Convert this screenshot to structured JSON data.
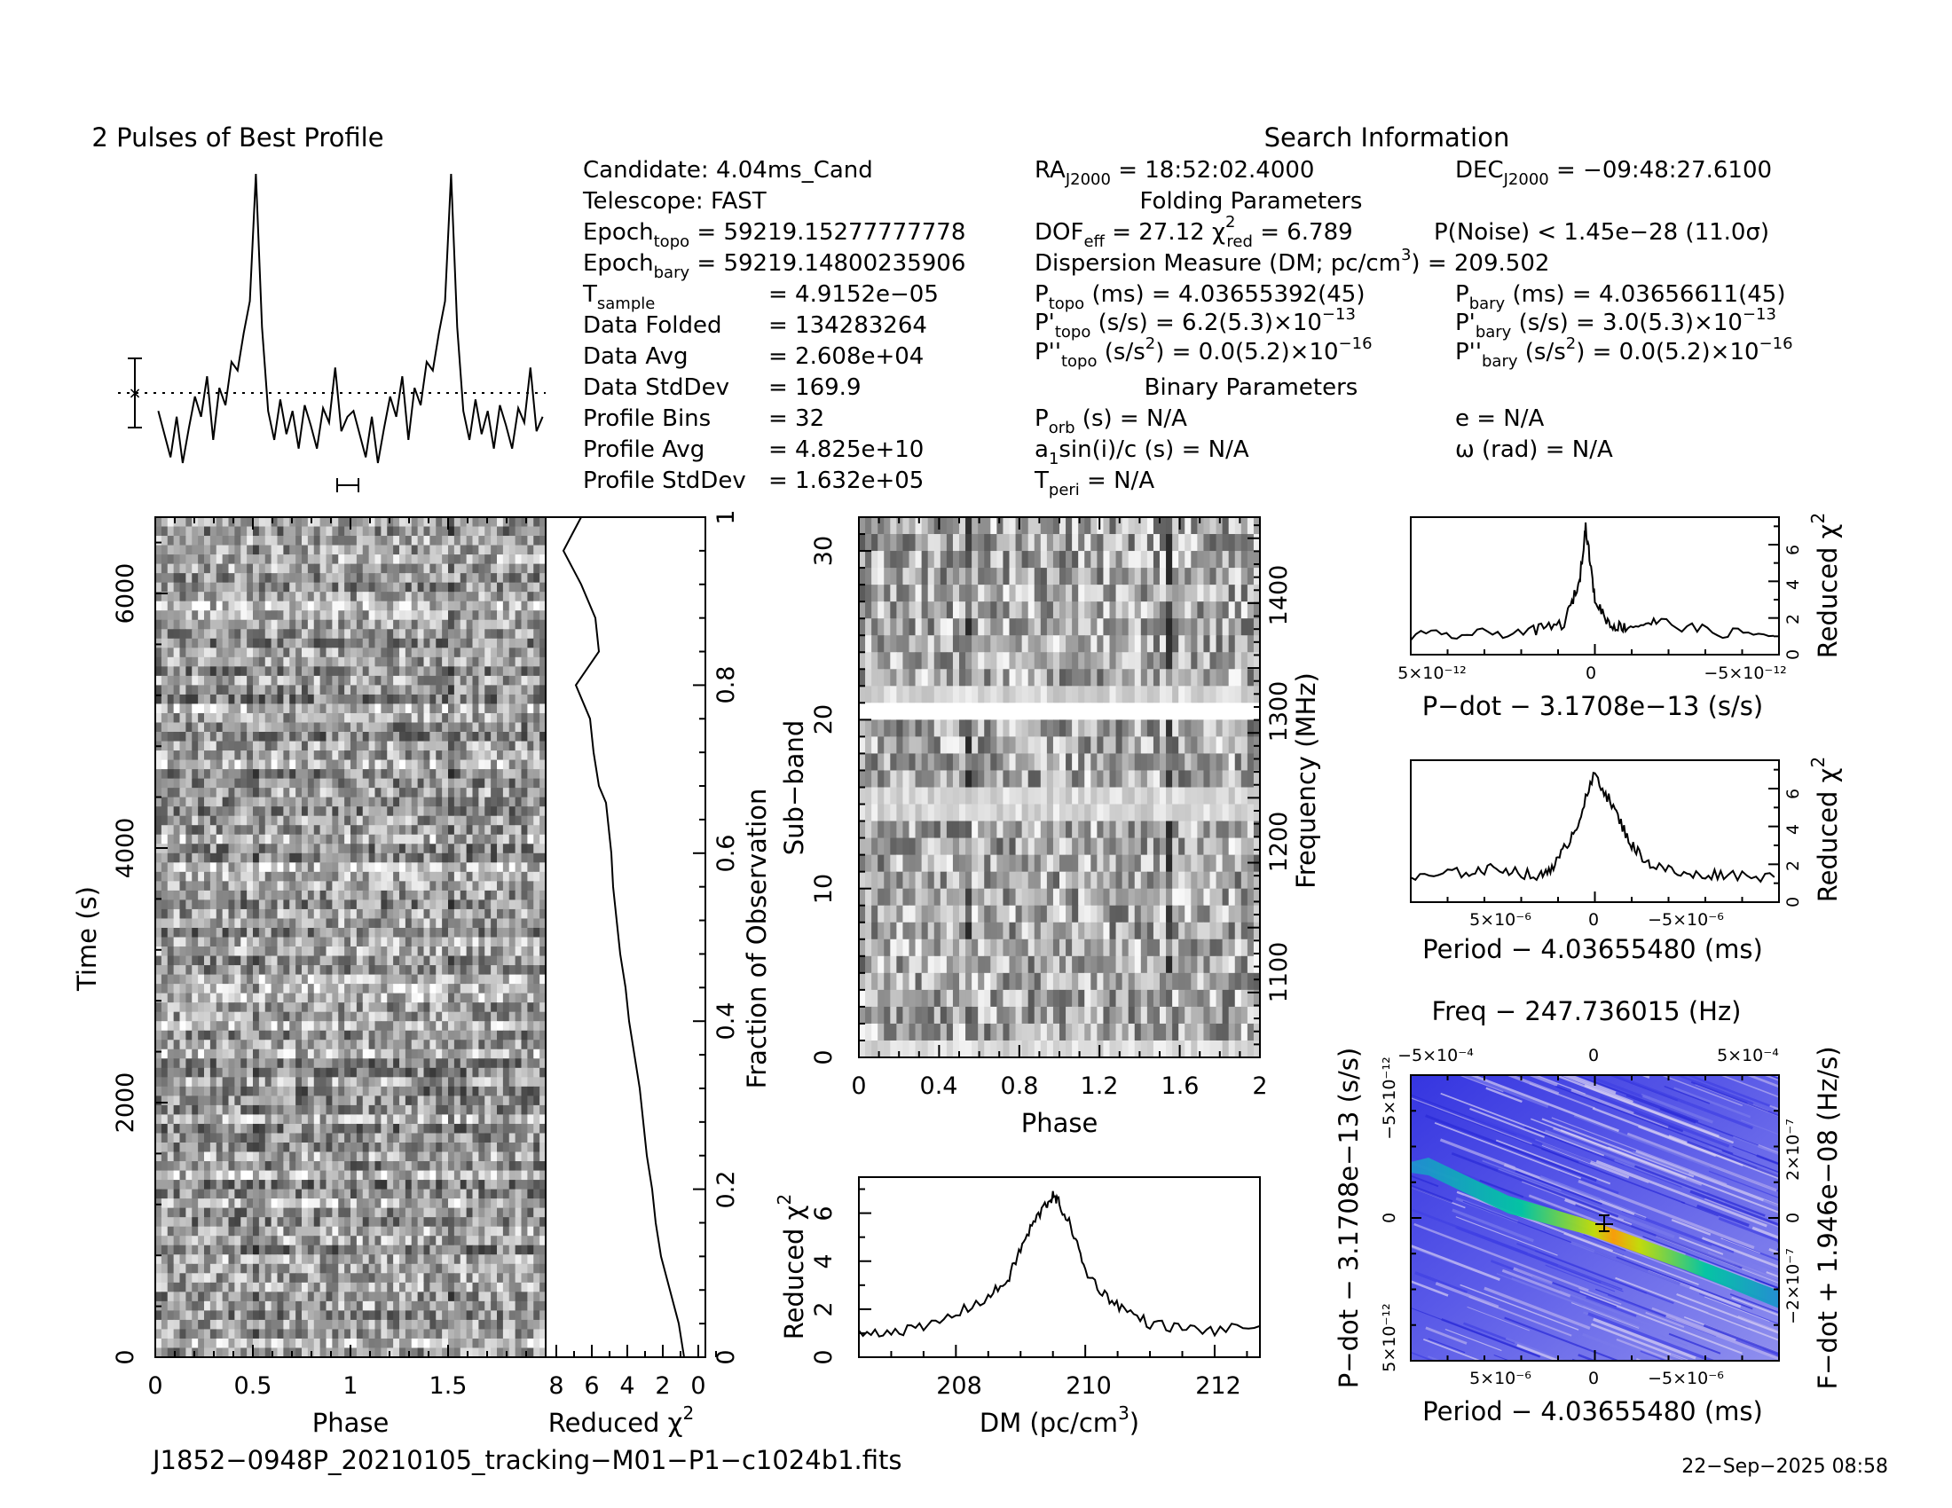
{
  "profile": {
    "title": "2 Pulses of Best Profile",
    "values": [
      0.18,
      0.1,
      0.02,
      0.16,
      0.0,
      0.12,
      0.23,
      0.16,
      0.3,
      0.08,
      0.26,
      0.2,
      0.35,
      0.32,
      0.45,
      0.56,
      1.0,
      0.47,
      0.18,
      0.08,
      0.22,
      0.1,
      0.18,
      0.05,
      0.2,
      0.13,
      0.05,
      0.19,
      0.14,
      0.33,
      0.11,
      0.16
    ]
  },
  "info": {
    "candidate": "Candidate:  4.04ms_Cand",
    "telescope": "Telescope:  FAST",
    "epoch_topo_label": "Epoch",
    "epoch_topo_sub": "topo",
    "epoch_topo_val": " = 59219.15277777778",
    "epoch_bary_label": "Epoch",
    "epoch_bary_sub": "bary",
    "epoch_bary_val": " = 59219.14800235906",
    "tsample_label": "T",
    "tsample_sub": "sample",
    "tsample_val": "=   4.9152e−05",
    "data_folded_label": "Data Folded",
    "data_folded_val": "=   134283264",
    "data_avg_label": "Data Avg",
    "data_avg_val": "=   2.608e+04",
    "data_std_label": "Data StdDev",
    "data_std_val": "=   169.9",
    "profile_bins_label": "Profile Bins",
    "profile_bins_val": "=   32",
    "profile_avg_label": "Profile Avg",
    "profile_avg_val": "=   4.825e+10",
    "profile_std_label": "Profile StdDev",
    "profile_std_val": "=   1.632e+05",
    "search_title": "Search Information",
    "ra_label": "RA",
    "ra_sub": "J2000",
    "ra_val": " = 18:52:02.4000",
    "dec_label": "DEC",
    "dec_sub": "J2000",
    "dec_val": " = −09:48:27.6100",
    "folding_title": "Folding Parameters",
    "dof_label": "DOF",
    "dof_sub": "eff",
    "dof_val": " = 27.12  χ",
    "chi_sup": "2",
    "chi_sub": "red",
    "chi_val": " = 6.789",
    "pnoise": "P(Noise) < 1.45e−28  (11.0σ)",
    "dm_line_a": "Dispersion Measure (DM; pc/cm",
    "dm_sup": "3",
    "dm_line_b": ") = 209.502",
    "ptopo_label": "P",
    "ptopo_sub": "topo",
    "ptopo_val": " (ms) =  4.03655392(45)",
    "pbary_label": "P",
    "pbary_sub": "bary",
    "pbary_val": " (ms) =  4.03656611(45)",
    "pdtopo_label": "P'",
    "pdtopo_sub": "topo",
    "pdtopo_val": " (s/s) =  6.2(5.3)×10",
    "pdtopo_exp": "−13",
    "pdbary_label": "P'",
    "pdbary_sub": "bary",
    "pdbary_val": " (s/s) =  3.0(5.3)×10",
    "pdbary_exp": "−13",
    "pddtopo_label": "P''",
    "pddtopo_sub": "topo",
    "pddtopo_val_a": " (s/s",
    "pddtopo_sup": "2",
    "pddtopo_val_b": ") = 0.0(5.2)×10",
    "pddtopo_exp": "−16",
    "pddbary_label": "P''",
    "pddbary_sub": "bary",
    "pddbary_val_a": " (s/s",
    "pddbary_sup": "2",
    "pddbary_val_b": ") = 0.0(5.2)×10",
    "pddbary_exp": "−16",
    "binary_title": "Binary Parameters",
    "porb_label": "P",
    "porb_sub": "orb",
    "porb_val": " (s) = N/A",
    "e_val": "e = N/A",
    "a1_label": "a",
    "a1_sub": "1",
    "a1_val": "sin(i)/c (s) = N/A",
    "omega_val": "ω (rad) = N/A",
    "tperi_label": "T",
    "tperi_sub": "peri",
    "tperi_val": " = N/A"
  },
  "time_phase": {
    "xlabel": "Phase",
    "ylabel": "Time (s)",
    "xticks": [
      "0",
      "0.5",
      "1",
      "1.5"
    ],
    "yticks": [
      "0",
      "2000",
      "4000",
      "6000"
    ]
  },
  "chi_time": {
    "xlabel": "Reduced χ",
    "xlabel_sup": "2",
    "xticks": [
      "8",
      "6",
      "4",
      "2",
      "0"
    ],
    "right_label": "Fraction of Observation",
    "right_ticks": [
      "0",
      "0.2",
      "0.4",
      "0.6",
      "0.8",
      "1"
    ]
  },
  "subband": {
    "xlabel": "Phase",
    "ylabel": "Sub−band",
    "right_label": "Frequency (MHz)",
    "xticks": [
      "0",
      "0.4",
      "0.8",
      "1.2",
      "1.6",
      "2"
    ],
    "yticks": [
      "0",
      "10",
      "20",
      "30"
    ],
    "right_ticks": [
      "1100",
      "1200",
      "1300",
      "1400"
    ]
  },
  "dm_plot": {
    "xlabel_a": "DM (pc/cm",
    "xlabel_sup": "3",
    "xlabel_b": ")",
    "ylabel": "Reduced χ",
    "ylabel_sup": "2",
    "xticks": [
      "208",
      "210",
      "212"
    ],
    "yticks": [
      "0",
      "2",
      "4",
      "6"
    ]
  },
  "pdot_plot": {
    "xlabel": "P−dot − 3.1708e−13 (s/s)",
    "right_label": "Reduced χ",
    "right_sup": "2",
    "xticks": [
      "5×10⁻¹²",
      "0",
      "−5×10⁻¹²"
    ],
    "yticks": [
      "0",
      "2",
      "4",
      "6"
    ]
  },
  "period_plot": {
    "xlabel": "Period − 4.03655480 (ms)",
    "right_label": "Reduced χ",
    "right_sup": "2",
    "xticks": [
      "5×10⁻⁶",
      "0",
      "−5×10⁻⁶"
    ],
    "yticks": [
      "0",
      "2",
      "4",
      "6"
    ]
  },
  "pp_plot": {
    "title": "Freq − 247.736015 (Hz)",
    "xlabel": "Period − 4.03655480 (ms)",
    "ylabel": "P−dot − 3.1708e−13 (s/s)",
    "right_label": "F−dot + 1.946e−08 (Hz/s)",
    "top_ticks": [
      "−5×10⁻⁴",
      "0",
      "5×10⁻⁴"
    ],
    "bottom_ticks": [
      "5×10⁻⁶",
      "0",
      "−5×10⁻⁶"
    ],
    "left_ticks": [
      "5×10⁻¹²",
      "0",
      "−5×10⁻¹²"
    ],
    "right_ticks": [
      "−2×10⁻⁷",
      "0",
      "2×10⁻⁷"
    ],
    "colors": [
      "#1f1fe0",
      "#4a4ae8",
      "#9a9af0",
      "#d8c8f0",
      "#00c8a0",
      "#c8e000",
      "#ffa000"
    ]
  },
  "footer": {
    "filename": "J1852−0948P_20210105_tracking−M01−P1−c1024b1.fits",
    "timestamp": "22−Sep−2025 08:58"
  },
  "chart_data": [
    {
      "type": "line",
      "title": "2 Pulses of Best Profile",
      "xlabel": "",
      "ylabel": "",
      "bins": 32,
      "pulses": 2,
      "peak_bin": 16
    },
    {
      "type": "heatmap",
      "xlabel": "Phase",
      "ylabel": "Time (s)",
      "xlim": [
        0,
        2
      ],
      "ylim": [
        0,
        6600
      ]
    },
    {
      "type": "line",
      "xlabel": "Reduced χ²",
      "ylabel": "Fraction of Observation",
      "xlim": [
        9,
        0
      ],
      "ylim": [
        0,
        1
      ],
      "x": [
        1.2,
        1.5,
        2.0,
        2.5,
        2.8,
        3.0,
        3.3,
        3.5,
        3.7,
        4.0,
        4.3,
        4.5,
        4.8,
        5.0,
        5.2,
        5.3,
        5.5,
        5.6,
        6.0,
        6.3,
        6.5,
        7.3,
        6.0,
        6.2,
        7.0,
        7.5,
        8.0,
        7.5,
        7.0
      ],
      "y": [
        0.0,
        0.04,
        0.08,
        0.12,
        0.16,
        0.2,
        0.24,
        0.28,
        0.32,
        0.36,
        0.4,
        0.44,
        0.48,
        0.52,
        0.56,
        0.6,
        0.64,
        0.66,
        0.68,
        0.72,
        0.76,
        0.8,
        0.84,
        0.88,
        0.92,
        0.94,
        0.96,
        0.98,
        1.0
      ]
    },
    {
      "type": "heatmap",
      "xlabel": "Phase",
      "ylabel": "Sub−band",
      "xlim": [
        0,
        2
      ],
      "ylim": [
        0,
        32
      ],
      "freq_range_mhz": [
        1050,
        1460
      ]
    },
    {
      "type": "line",
      "xlabel": "DM (pc/cm³)",
      "ylabel": "Reduced χ²",
      "xlim": [
        206.5,
        212.7
      ],
      "ylim": [
        0,
        7.5
      ],
      "x": [
        206.5,
        207.0,
        207.5,
        208.0,
        208.5,
        208.8,
        209.0,
        209.2,
        209.4,
        209.5,
        209.6,
        209.8,
        210.0,
        210.3,
        210.6,
        211.0,
        211.5,
        212.0,
        212.7
      ],
      "y": [
        1.0,
        1.1,
        1.2,
        1.8,
        2.5,
        3.2,
        4.5,
        5.6,
        6.4,
        6.7,
        6.4,
        5.3,
        3.6,
        2.6,
        2.0,
        1.4,
        1.2,
        1.1,
        1.3
      ]
    },
    {
      "type": "line",
      "xlabel": "P−dot − 3.1708e−13 (s/s)",
      "ylabel": "Reduced χ²",
      "ylim": [
        0,
        7.5
      ],
      "x": [
        6e-12,
        4e-12,
        2e-12,
        1e-12,
        5e-13,
        3e-13,
        0,
        -5e-13,
        -1e-12,
        -2e-12,
        -4e-12,
        -6e-12
      ],
      "y": [
        1.0,
        1.1,
        1.3,
        1.7,
        4.0,
        7.0,
        3.0,
        1.6,
        1.5,
        1.8,
        1.2,
        1.1
      ]
    },
    {
      "type": "line",
      "xlabel": "Period − 4.03655480 (ms)",
      "ylabel": "Reduced χ²",
      "ylim": [
        0,
        7.5
      ],
      "x": [
        1e-05,
        7e-06,
        5e-06,
        3e-06,
        2e-06,
        1e-06,
        0,
        -1e-06,
        -2e-06,
        -3e-06,
        -5e-06,
        -7e-06,
        -1e-05
      ],
      "y": [
        1.2,
        1.6,
        1.8,
        1.3,
        2.2,
        4.0,
        6.8,
        5.0,
        3.0,
        2.0,
        1.4,
        1.5,
        1.3
      ]
    },
    {
      "type": "heatmap",
      "title": "Freq − 247.736015 (Hz)",
      "xlabel": "Period − 4.03655480 (ms)",
      "ylabel": "P−dot − 3.1708e−13 (s/s)"
    }
  ]
}
